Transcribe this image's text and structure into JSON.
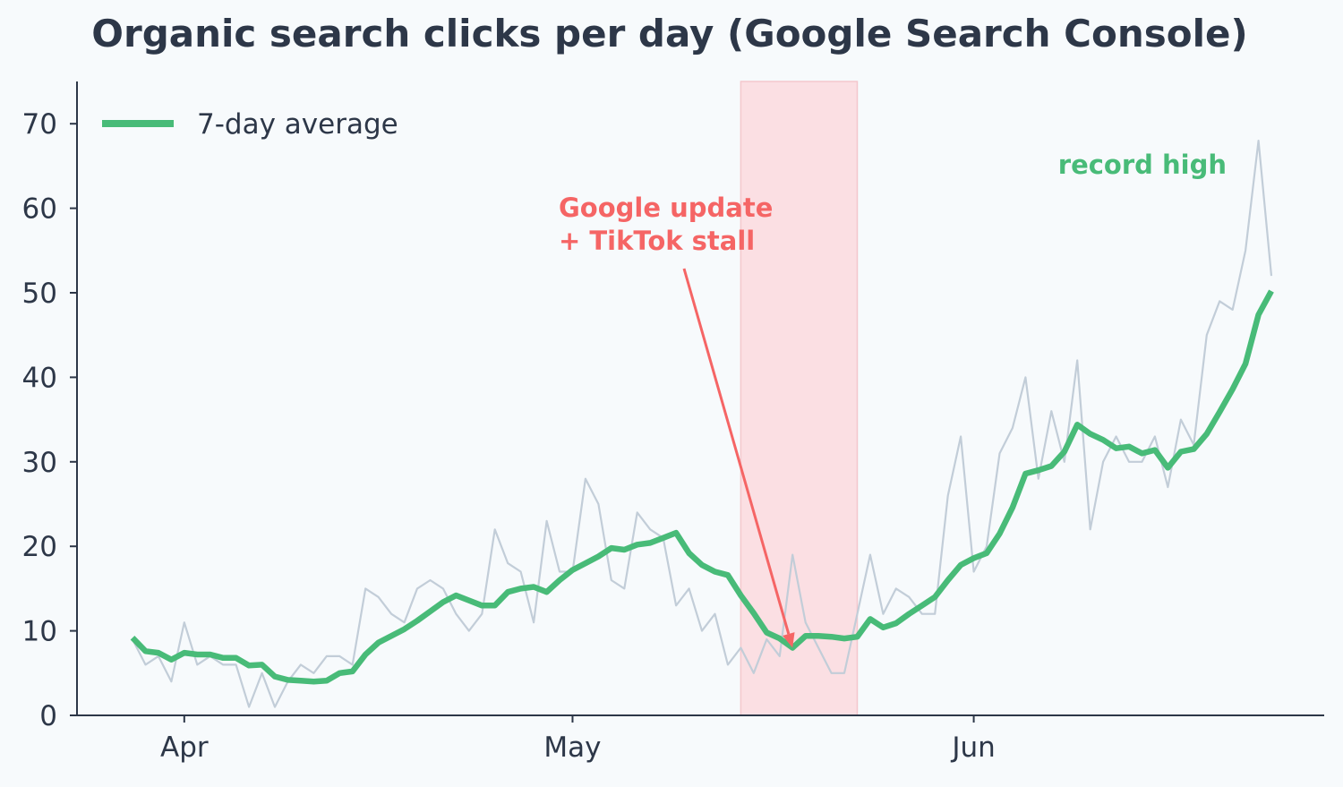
{
  "chart_data": {
    "type": "line",
    "title": "Organic search clicks per day (Google Search Console)",
    "xlabel": "",
    "ylabel": "",
    "x_start": "2024-03-28",
    "x_end": "2024-06-24",
    "x_ticks": [
      {
        "date": "2024-04-01",
        "label": "Apr"
      },
      {
        "date": "2024-05-01",
        "label": "May"
      },
      {
        "date": "2024-06-01",
        "label": "Jun"
      }
    ],
    "ylim": [
      0,
      75
    ],
    "y_ticks": [
      0,
      10,
      20,
      30,
      40,
      50,
      60,
      70
    ],
    "grid": false,
    "legend_position": "top-left",
    "colors": {
      "background": "#f7fafc",
      "daily": "#c2cdd8",
      "average": "#48bb78",
      "highlight": "#f56565",
      "highlight_band": "#fbdfe3",
      "axis": "#2d3748",
      "text": "#2d3748"
    },
    "series": [
      {
        "key": "daily",
        "values": [
          9,
          6,
          7,
          4,
          11,
          6,
          7,
          6,
          6,
          1,
          5,
          1,
          4,
          6,
          5,
          7,
          7,
          6,
          15,
          14,
          12,
          11,
          15,
          16,
          15,
          12,
          10,
          12,
          22,
          18,
          17,
          11,
          23,
          17,
          17,
          28,
          25,
          16,
          15,
          24,
          22,
          21,
          13,
          15,
          10,
          12,
          6,
          8,
          5,
          9,
          7,
          19,
          11,
          8,
          5,
          5,
          12,
          19,
          12,
          15,
          14,
          12,
          12,
          26,
          33,
          17,
          20,
          31,
          34,
          40,
          28,
          36,
          30,
          42,
          22,
          30,
          33,
          30,
          30,
          33,
          27,
          35,
          32,
          45,
          49,
          48,
          55,
          68,
          52
        ]
      },
      {
        "key": "average",
        "name": "7-day average",
        "values": [
          9.2,
          7.6,
          7.4,
          6.6,
          7.4,
          7.2,
          7.2,
          6.8,
          6.8,
          5.9,
          6.0,
          4.6,
          4.2,
          4.1,
          4.0,
          4.1,
          5.0,
          5.2,
          7.2,
          8.6,
          9.4,
          10.2,
          11.2,
          12.3,
          13.4,
          14.2,
          13.6,
          13.0,
          13.0,
          14.6,
          15.0,
          15.2,
          14.6,
          16.0,
          17.2,
          18.0,
          18.8,
          19.8,
          19.6,
          20.2,
          20.4,
          21.0,
          21.6,
          19.2,
          17.8,
          17.0,
          16.6,
          14.2,
          12.1,
          9.8,
          9.1,
          8.0,
          9.4,
          9.4,
          9.3,
          9.1,
          9.3,
          11.4,
          10.4,
          10.9,
          12.0,
          13.0,
          14.0,
          16.0,
          17.8,
          18.6,
          19.2,
          21.5,
          24.6,
          28.6,
          29.0,
          29.5,
          31.2,
          34.4,
          33.3,
          32.6,
          31.6,
          31.8,
          31.0,
          31.4,
          29.3,
          31.2,
          31.5,
          33.3,
          35.9,
          38.6,
          41.6,
          47.4,
          50.2
        ]
      }
    ],
    "highlight_range": {
      "start": "2024-05-14",
      "end": "2024-05-23"
    },
    "annotations": [
      {
        "key": "google-update",
        "lines": [
          "Google update",
          "+ TikTok stall"
        ],
        "target_date": "2024-05-18",
        "target_value": 8
      },
      {
        "key": "record-high",
        "lines": [
          "record high"
        ]
      }
    ]
  }
}
